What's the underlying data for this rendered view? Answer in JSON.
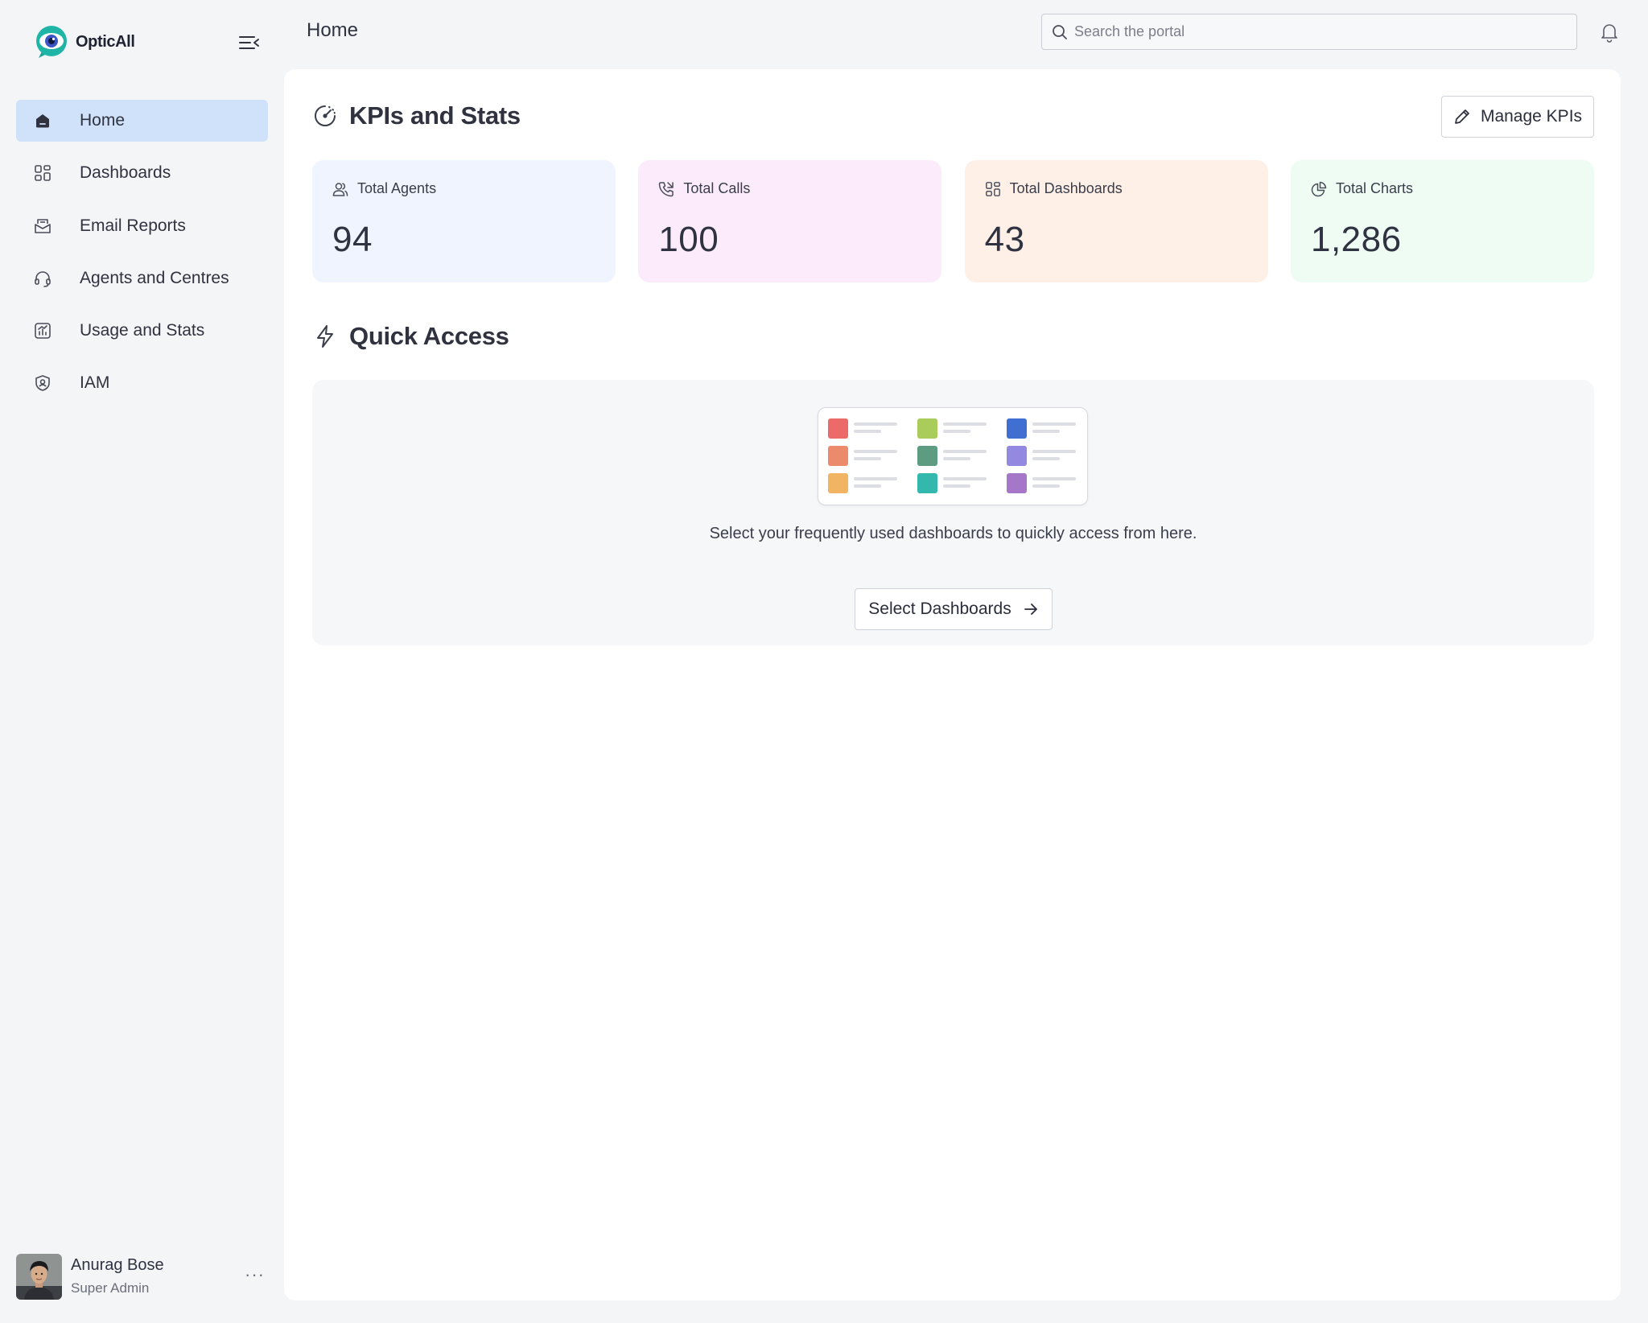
{
  "app": {
    "name": "OpticAll"
  },
  "header": {
    "title": "Home",
    "search_placeholder": "Search the portal"
  },
  "sidebar": {
    "items": [
      {
        "label": "Home",
        "icon": "home-icon",
        "active": true
      },
      {
        "label": "Dashboards",
        "icon": "grid-icon",
        "active": false
      },
      {
        "label": "Email Reports",
        "icon": "mail-icon",
        "active": false
      },
      {
        "label": "Agents and Centres",
        "icon": "headset-icon",
        "active": false
      },
      {
        "label": "Usage and Stats",
        "icon": "chart-icon",
        "active": false
      },
      {
        "label": "IAM",
        "icon": "shield-user-icon",
        "active": false
      }
    ],
    "user": {
      "name": "Anurag Bose",
      "role": "Super Admin",
      "menu": "···"
    }
  },
  "kpi_section": {
    "title": "KPIs and Stats",
    "manage_label": "Manage KPIs",
    "cards": [
      {
        "label": "Total Agents",
        "value": "94",
        "icon": "users-icon",
        "bg": "#eff4fe"
      },
      {
        "label": "Total Calls",
        "value": "100",
        "icon": "phone-icon",
        "bg": "#fcecfb"
      },
      {
        "label": "Total Dashboards",
        "value": "43",
        "icon": "grid-icon",
        "bg": "#feefe7"
      },
      {
        "label": "Total Charts",
        "value": "1,286",
        "icon": "pie-chart-icon",
        "bg": "#eefcf3"
      }
    ]
  },
  "quick_access": {
    "title": "Quick Access",
    "empty_text": "Select your frequently used dashboards to quickly access from here.",
    "button_label": "Select Dashboards",
    "illustration_colors": [
      "#ec6a6a",
      "#a9cc5a",
      "#3e6fd1",
      "#ec8b6b",
      "#5e9c82",
      "#9489e0",
      "#f0b463",
      "#33b8ae",
      "#a676c9"
    ]
  },
  "colors": {
    "accent": "#cfe2fa",
    "page_bg": "#f4f5f7",
    "panel_bg": "#ffffff"
  }
}
